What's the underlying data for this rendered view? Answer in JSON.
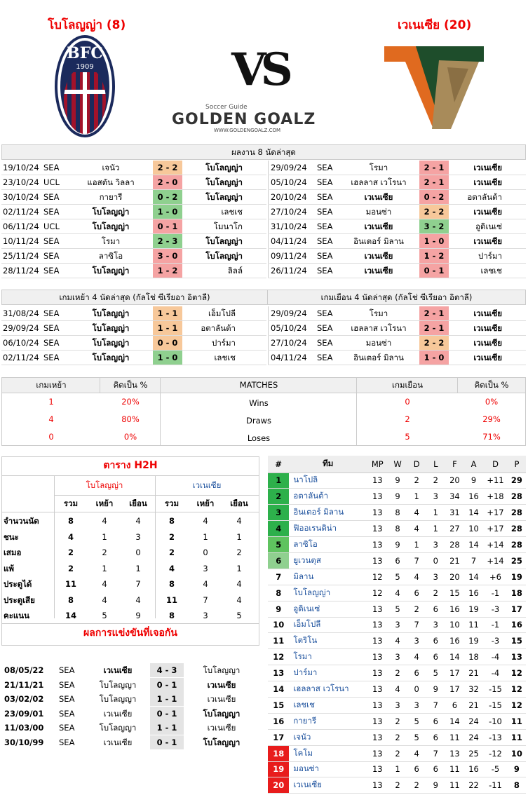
{
  "home": {
    "title": "โบโลญญ่า (8)",
    "logo_text": "BFC",
    "logo_year": "1909"
  },
  "away": {
    "title": "เวเนเซีย (20)"
  },
  "vs": "VS",
  "brand": {
    "tag": "Soccer Guide",
    "name": "GOLDEN GOALZ",
    "url": "WWW.GOLDENGOALZ.COM"
  },
  "last8": {
    "header": "ผลงาน 8 นัดล่าสุด",
    "home": [
      [
        "19/10/24",
        "SEA",
        "เจนัว",
        "2 - 2",
        "โบโลญญ่า",
        "d",
        "r"
      ],
      [
        "23/10/24",
        "UCL",
        "แอสตัน วิลลา",
        "2 - 0",
        "โบโลญญ่า",
        "l",
        "r"
      ],
      [
        "30/10/24",
        "SEA",
        "กายารี",
        "0 - 2",
        "โบโลญญ่า",
        "w",
        "r"
      ],
      [
        "02/11/24",
        "SEA",
        "โบโลญญ่า",
        "1 - 0",
        "เลชเช",
        "w",
        "l"
      ],
      [
        "06/11/24",
        "UCL",
        "โบโลญญ่า",
        "0 - 1",
        "โมนาโก",
        "l",
        "l"
      ],
      [
        "10/11/24",
        "SEA",
        "โรมา",
        "2 - 3",
        "โบโลญญ่า",
        "w",
        "r"
      ],
      [
        "25/11/24",
        "SEA",
        "ลาซิโอ",
        "3 - 0",
        "โบโลญญ่า",
        "l",
        "r"
      ],
      [
        "28/11/24",
        "SEA",
        "โบโลญญ่า",
        "1 - 2",
        "ลิลล์",
        "l",
        "l"
      ]
    ],
    "away": [
      [
        "29/09/24",
        "SEA",
        "โรมา",
        "2 - 1",
        "เวเนเซีย",
        "l",
        "r"
      ],
      [
        "05/10/24",
        "SEA",
        "เฮลลาส เวโรนา",
        "2 - 1",
        "เวเนเซีย",
        "l",
        "r"
      ],
      [
        "20/10/24",
        "SEA",
        "เวเนเซีย",
        "0 - 2",
        "อตาลันต้า",
        "l",
        "l"
      ],
      [
        "27/10/24",
        "SEA",
        "มอนซ่า",
        "2 - 2",
        "เวเนเซีย",
        "d",
        "r"
      ],
      [
        "31/10/24",
        "SEA",
        "เวเนเซีย",
        "3 - 2",
        "อูดิเนเซ่",
        "w",
        "l"
      ],
      [
        "04/11/24",
        "SEA",
        "อินเตอร์ มิลาน",
        "1 - 0",
        "เวเนเซีย",
        "l",
        "r"
      ],
      [
        "09/11/24",
        "SEA",
        "เวเนเซีย",
        "1 - 2",
        "ปาร์มา",
        "l",
        "l"
      ],
      [
        "26/11/24",
        "SEA",
        "เวเนเซีย",
        "0 - 1",
        "เลชเช",
        "l",
        "l"
      ]
    ]
  },
  "last4": {
    "home_header": "เกมเหย้า 4 นัดล่าสุด (กัลโช่ ซีเรียอา อิตาลี)",
    "away_header": "เกมเยือน 4 นัดล่าสุด (กัลโช่ ซีเรียอา อิตาลี)",
    "home": [
      [
        "31/08/24",
        "SEA",
        "โบโลญญ่า",
        "1 - 1",
        "เอ็มโปลี",
        "d",
        "l"
      ],
      [
        "29/09/24",
        "SEA",
        "โบโลญญ่า",
        "1 - 1",
        "อตาลันต้า",
        "d",
        "l"
      ],
      [
        "06/10/24",
        "SEA",
        "โบโลญญ่า",
        "0 - 0",
        "ปาร์มา",
        "d",
        "l"
      ],
      [
        "02/11/24",
        "SEA",
        "โบโลญญ่า",
        "1 - 0",
        "เลชเช",
        "w",
        "l"
      ]
    ],
    "away": [
      [
        "29/09/24",
        "SEA",
        "โรมา",
        "2 - 1",
        "เวเนเซีย",
        "l",
        "r"
      ],
      [
        "05/10/24",
        "SEA",
        "เฮลลาส เวโรนา",
        "2 - 1",
        "เวเนเซีย",
        "l",
        "r"
      ],
      [
        "27/10/24",
        "SEA",
        "มอนซ่า",
        "2 - 2",
        "เวเนเซีย",
        "d",
        "r"
      ],
      [
        "04/11/24",
        "SEA",
        "อินเตอร์ มิลาน",
        "1 - 0",
        "เวเนเซีย",
        "l",
        "r"
      ]
    ]
  },
  "matches": {
    "h_home": "เกมเหย้า",
    "h_pct": "คิดเป็น %",
    "h_mid": "MATCHES",
    "h_away": "เกมเยือน",
    "h_pct2": "คิดเป็น %",
    "rows": [
      [
        "1",
        "20%",
        "Wins",
        "0",
        "0%"
      ],
      [
        "4",
        "80%",
        "Draws",
        "2",
        "29%"
      ],
      [
        "0",
        "0%",
        "Loses",
        "5",
        "71%"
      ]
    ]
  },
  "h2h": {
    "title": "ตาราง H2H",
    "home": "โบโลญญ่า",
    "away": "เวเนเซีย",
    "cols": [
      "รวม",
      "เหย้า",
      "เยือน",
      "รวม",
      "เหย้า",
      "เยือน"
    ],
    "rows": [
      [
        "จำนวนนัด",
        "8",
        "4",
        "4",
        "8",
        "4",
        "4"
      ],
      [
        "ชนะ",
        "4",
        "1",
        "3",
        "2",
        "1",
        "1"
      ],
      [
        "เสมอ",
        "2",
        "2",
        "0",
        "2",
        "0",
        "2"
      ],
      [
        "แพ้",
        "2",
        "1",
        "1",
        "4",
        "3",
        "1"
      ],
      [
        "ประตูได้",
        "11",
        "4",
        "7",
        "8",
        "4",
        "4"
      ],
      [
        "ประตูเสีย",
        "8",
        "4",
        "4",
        "11",
        "7",
        "4"
      ],
      [
        "คะแนน",
        "14",
        "5",
        "9",
        "8",
        "3",
        "5"
      ]
    ]
  },
  "results": {
    "title": "ผลการแข่งขันที่เจอกัน",
    "rows": [
      [
        "08/05/22",
        "SEA",
        "เวเนเซีย",
        "4 - 3",
        "โบโลญญา",
        "l"
      ],
      [
        "21/11/21",
        "SEA",
        "โบโลญญา",
        "0 - 1",
        "เวเนเซีย",
        "r"
      ],
      [
        "03/02/02",
        "SEA",
        "โบโลญญา",
        "1 - 1",
        "เวเนเซีย",
        "n"
      ],
      [
        "23/09/01",
        "SEA",
        "เวเนเซีย",
        "0 - 1",
        "โบโลญญา",
        "r"
      ],
      [
        "11/03/00",
        "SEA",
        "โบโลญญา",
        "1 - 1",
        "เวเนเซีย",
        "n"
      ],
      [
        "30/10/99",
        "SEA",
        "เวเนเซีย",
        "0 - 1",
        "โบโลญญา",
        "r"
      ]
    ]
  },
  "standings": {
    "cols": [
      "#",
      "ทีม",
      "MP",
      "W",
      "D",
      "L",
      "F",
      "A",
      "D",
      "P"
    ],
    "rows": [
      [
        "1",
        "นาโปลิ",
        "13",
        "9",
        "2",
        "2",
        "20",
        "9",
        "+11",
        "29"
      ],
      [
        "2",
        "อตาลันต้า",
        "13",
        "9",
        "1",
        "3",
        "34",
        "16",
        "+18",
        "28"
      ],
      [
        "3",
        "อินเตอร์ มิลาน",
        "13",
        "8",
        "4",
        "1",
        "31",
        "14",
        "+17",
        "28"
      ],
      [
        "4",
        "ฟิออเรนติน่า",
        "13",
        "8",
        "4",
        "1",
        "27",
        "10",
        "+17",
        "28"
      ],
      [
        "5",
        "ลาซิโอ",
        "13",
        "9",
        "1",
        "3",
        "28",
        "14",
        "+14",
        "28"
      ],
      [
        "6",
        "ยูเวนตุส",
        "13",
        "6",
        "7",
        "0",
        "21",
        "7",
        "+14",
        "25"
      ],
      [
        "7",
        "มิลาน",
        "12",
        "5",
        "4",
        "3",
        "20",
        "14",
        "+6",
        "19"
      ],
      [
        "8",
        "โบโลญญ่า",
        "12",
        "4",
        "6",
        "2",
        "15",
        "16",
        "-1",
        "18"
      ],
      [
        "9",
        "อูดิเนเซ่",
        "13",
        "5",
        "2",
        "6",
        "16",
        "19",
        "-3",
        "17"
      ],
      [
        "10",
        "เอ็มโปลี",
        "13",
        "3",
        "7",
        "3",
        "10",
        "11",
        "-1",
        "16"
      ],
      [
        "11",
        "โตริโน",
        "13",
        "4",
        "3",
        "6",
        "16",
        "19",
        "-3",
        "15"
      ],
      [
        "12",
        "โรมา",
        "13",
        "3",
        "4",
        "6",
        "14",
        "18",
        "-4",
        "13"
      ],
      [
        "13",
        "ปาร์มา",
        "13",
        "2",
        "6",
        "5",
        "17",
        "21",
        "-4",
        "12"
      ],
      [
        "14",
        "เฮลลาส เวโรนา",
        "13",
        "4",
        "0",
        "9",
        "17",
        "32",
        "-15",
        "12"
      ],
      [
        "15",
        "เลชเช",
        "13",
        "3",
        "3",
        "7",
        "6",
        "21",
        "-15",
        "12"
      ],
      [
        "16",
        "กายารี",
        "13",
        "2",
        "5",
        "6",
        "14",
        "24",
        "-10",
        "11"
      ],
      [
        "17",
        "เจนัว",
        "13",
        "2",
        "5",
        "6",
        "11",
        "24",
        "-13",
        "11"
      ],
      [
        "18",
        "โคโม",
        "13",
        "2",
        "4",
        "7",
        "13",
        "25",
        "-12",
        "10"
      ],
      [
        "19",
        "มอนซ่า",
        "13",
        "1",
        "6",
        "6",
        "11",
        "16",
        "-5",
        "9"
      ],
      [
        "20",
        "เวเนเซีย",
        "13",
        "2",
        "2",
        "9",
        "11",
        "22",
        "-11",
        "8"
      ]
    ]
  },
  "colors": {
    "win": "#8fd08f",
    "draw": "#f7c89a",
    "loss": "#f5a3a3",
    "title_red": "#e00000",
    "link_blue": "#1a4f9c"
  }
}
